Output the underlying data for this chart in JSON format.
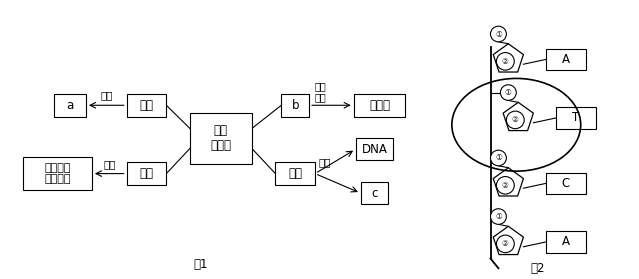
{
  "fig_width": 6.39,
  "fig_height": 2.79,
  "dpi": 100,
  "bg_color": "#ffffff",
  "fig1_label": "图1",
  "fig2_label": "图2",
  "baokuo": "包括",
  "fenwei": "分为",
  "zucheng_danwei": "组成\n单位",
  "zhonglei": "种类",
  "youji_hehuawu": "有机\n化合物",
  "zhizhi": "脂质",
  "tangLei": "糖类",
  "dantang": "单糖、二\n糖和多糖",
  "a_label": "a",
  "b_label": "b",
  "hesuanLabel": "核酸",
  "DNA_label": "DNA",
  "c_label": "c",
  "anjisuan_label": "氨基酸",
  "A1_label": "A",
  "T_label": "T",
  "C_label": "C",
  "A2_label": "A",
  "circle1_label": "①",
  "circle2_label": "②"
}
